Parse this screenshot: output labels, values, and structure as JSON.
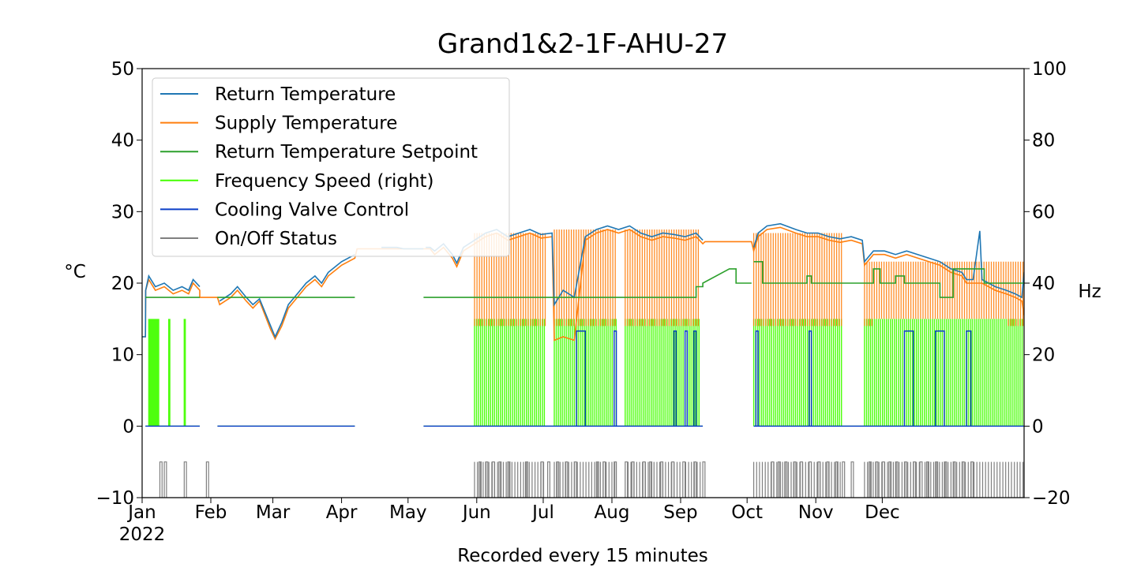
{
  "chart_data": {
    "type": "line",
    "title": "Grand1&2-1F-AHU-27",
    "xlabel": "Recorded every 15 minutes",
    "ylabel_left": "°C",
    "ylabel_right": "Hz",
    "ylim_left": [
      -10,
      50
    ],
    "ylim_right": [
      -20,
      100
    ],
    "yticks_left": [
      "−10",
      "0",
      "10",
      "20",
      "30",
      "40",
      "50"
    ],
    "yticks_right": [
      "−20",
      "0",
      "20",
      "40",
      "60",
      "80",
      "100"
    ],
    "xlim": [
      "2022-01-01",
      "2022-12-31"
    ],
    "xticks": [
      {
        "label": "Jan",
        "sub": "2022",
        "month": 0
      },
      {
        "label": "Feb",
        "month": 1
      },
      {
        "label": "Mar",
        "month": 2
      },
      {
        "label": "Apr",
        "month": 3
      },
      {
        "label": "May",
        "month": 4
      },
      {
        "label": "Jun",
        "month": 5
      },
      {
        "label": "Jul",
        "month": 6
      },
      {
        "label": "Aug",
        "month": 7
      },
      {
        "label": "Sep",
        "month": 8
      },
      {
        "label": "Oct",
        "month": 9
      },
      {
        "label": "Nov",
        "month": 10
      },
      {
        "label": "Dec",
        "month": 11
      }
    ],
    "legend_position": "upper-left",
    "grid": false,
    "series": [
      {
        "name": "Return Temperature",
        "color": "#1f77b4",
        "axis": "left",
        "points": [
          [
            0,
            12.5
          ],
          [
            1.5,
            12.5
          ],
          [
            1.6,
            19
          ],
          [
            3,
            21
          ],
          [
            6,
            19.5
          ],
          [
            10,
            20
          ],
          [
            14,
            19
          ],
          [
            18,
            19.5
          ],
          [
            21,
            19
          ],
          [
            23,
            20.5
          ],
          [
            26,
            19.5
          ],
          [
            34,
            null
          ],
          [
            35,
            17.5
          ],
          [
            40,
            18.5
          ],
          [
            43,
            19.5
          ],
          [
            47,
            18
          ],
          [
            50,
            17
          ],
          [
            53,
            17.8
          ],
          [
            58,
            14
          ],
          [
            60,
            12.5
          ],
          [
            63,
            14.5
          ],
          [
            66,
            17
          ],
          [
            70,
            18.5
          ],
          [
            74,
            20
          ],
          [
            78,
            21
          ],
          [
            81,
            20
          ],
          [
            84,
            21.5
          ],
          [
            88,
            22.5
          ],
          [
            90,
            23
          ],
          [
            93,
            23.5
          ],
          [
            96,
            24
          ],
          [
            107,
            null
          ],
          [
            108,
            25
          ],
          [
            115,
            25
          ],
          [
            118,
            24.8
          ],
          [
            121,
            24.8
          ],
          [
            124,
            24.8
          ],
          [
            127,
            24.8
          ],
          [
            127,
            null
          ],
          [
            128,
            25
          ],
          [
            130,
            25
          ],
          [
            132,
            24.5
          ],
          [
            136,
            25.5
          ],
          [
            140,
            24
          ],
          [
            142,
            22.8
          ],
          [
            145,
            25
          ],
          [
            150,
            26
          ],
          [
            155,
            27
          ],
          [
            160,
            27.5
          ],
          [
            165,
            26.5
          ],
          [
            170,
            27
          ],
          [
            175,
            27.5
          ],
          [
            180,
            26.8
          ],
          [
            185,
            27
          ],
          [
            186,
            17
          ],
          [
            190,
            19
          ],
          [
            195,
            18
          ],
          [
            200,
            26.5
          ],
          [
            205,
            27.5
          ],
          [
            210,
            28
          ],
          [
            215,
            27.5
          ],
          [
            220,
            28
          ],
          [
            225,
            27
          ],
          [
            230,
            26.5
          ],
          [
            235,
            27
          ],
          [
            240,
            26.8
          ],
          [
            245,
            26.5
          ],
          [
            250,
            27
          ],
          [
            253,
            26
          ],
          [
            253,
            null
          ],
          [
            276,
            25
          ],
          [
            278,
            27
          ],
          [
            282,
            28
          ],
          [
            288,
            28.3
          ],
          [
            295,
            27.5
          ],
          [
            300,
            27
          ],
          [
            305,
            27
          ],
          [
            310,
            26.5
          ],
          [
            315,
            26.2
          ],
          [
            320,
            26.5
          ],
          [
            325,
            26
          ],
          [
            326,
            23
          ],
          [
            330,
            24.5
          ],
          [
            335,
            24.5
          ],
          [
            340,
            24
          ],
          [
            345,
            24.5
          ],
          [
            350,
            24
          ],
          [
            355,
            23.5
          ],
          [
            360,
            23
          ],
          [
            365,
            22
          ],
          [
            370,
            21.5
          ],
          [
            372,
            20.5
          ],
          [
            375,
            20.5
          ],
          [
            378,
            27.3
          ],
          [
            379,
            20.5
          ],
          [
            385,
            19.5
          ],
          [
            390,
            19
          ],
          [
            394,
            18.5
          ],
          [
            397,
            18
          ],
          [
            398,
            21.5
          ],
          [
            400,
            22
          ]
        ]
      },
      {
        "name": "Supply Temperature",
        "color": "#ff7f0e",
        "axis": "left",
        "points": [
          [
            0,
            12.5
          ],
          [
            1.5,
            12.5
          ],
          [
            1.6,
            19
          ],
          [
            3,
            20.5
          ],
          [
            6,
            19
          ],
          [
            10,
            19.5
          ],
          [
            14,
            18.5
          ],
          [
            18,
            19
          ],
          [
            21,
            18.5
          ],
          [
            23,
            20
          ],
          [
            26,
            19
          ],
          [
            26,
            18
          ],
          [
            34,
            18
          ],
          [
            35,
            17
          ],
          [
            40,
            18
          ],
          [
            43,
            19
          ],
          [
            47,
            17.5
          ],
          [
            50,
            16.5
          ],
          [
            53,
            17.5
          ],
          [
            58,
            13.5
          ],
          [
            60,
            12.2
          ],
          [
            63,
            14
          ],
          [
            66,
            16.5
          ],
          [
            70,
            18
          ],
          [
            74,
            19.5
          ],
          [
            78,
            20.5
          ],
          [
            81,
            19.5
          ],
          [
            84,
            21
          ],
          [
            88,
            22
          ],
          [
            90,
            22.5
          ],
          [
            93,
            23
          ],
          [
            96,
            23.5
          ],
          [
            97,
            24.8
          ],
          [
            107,
            24.8
          ],
          [
            108,
            24.8
          ],
          [
            127,
            24.8
          ],
          [
            130,
            24.8
          ],
          [
            132,
            24
          ],
          [
            136,
            25
          ],
          [
            140,
            23.5
          ],
          [
            142,
            22.3
          ],
          [
            145,
            24.5
          ],
          [
            150,
            25.5
          ],
          [
            155,
            26.5
          ],
          [
            160,
            27
          ],
          [
            165,
            26
          ],
          [
            170,
            26.5
          ],
          [
            175,
            27
          ],
          [
            180,
            26.3
          ],
          [
            185,
            26.5
          ],
          [
            186,
            12
          ],
          [
            190,
            12.5
          ],
          [
            195,
            12
          ],
          [
            200,
            26
          ],
          [
            205,
            27
          ],
          [
            210,
            27.5
          ],
          [
            215,
            27
          ],
          [
            220,
            27.5
          ],
          [
            225,
            26.5
          ],
          [
            230,
            26
          ],
          [
            235,
            26.5
          ],
          [
            240,
            26.3
          ],
          [
            245,
            26
          ],
          [
            250,
            26.5
          ],
          [
            253,
            25.5
          ],
          [
            254,
            25.8
          ],
          [
            275,
            25.8
          ],
          [
            276,
            24.5
          ],
          [
            278,
            26.5
          ],
          [
            282,
            27.5
          ],
          [
            288,
            27.8
          ],
          [
            295,
            27
          ],
          [
            300,
            26.5
          ],
          [
            305,
            26.5
          ],
          [
            310,
            26
          ],
          [
            315,
            25.7
          ],
          [
            320,
            26
          ],
          [
            325,
            25.5
          ],
          [
            326,
            22.5
          ],
          [
            330,
            24
          ],
          [
            335,
            24
          ],
          [
            340,
            23.5
          ],
          [
            345,
            24
          ],
          [
            350,
            23.5
          ],
          [
            355,
            23
          ],
          [
            360,
            22.5
          ],
          [
            365,
            21.5
          ],
          [
            370,
            21
          ],
          [
            372,
            20
          ],
          [
            375,
            20
          ],
          [
            379,
            20
          ],
          [
            385,
            19
          ],
          [
            390,
            18.5
          ],
          [
            394,
            18
          ],
          [
            397,
            17.5
          ],
          [
            398,
            15.5
          ]
        ]
      },
      {
        "name": "Return Temperature Setpoint",
        "color": "#2ca02c",
        "axis": "left",
        "points": [
          [
            1.5,
            18
          ],
          [
            26,
            18
          ],
          [
            26,
            null
          ],
          [
            34,
            18
          ],
          [
            96,
            18
          ],
          [
            96,
            null
          ],
          [
            127,
            18
          ],
          [
            250,
            18
          ],
          [
            250,
            19.5
          ],
          [
            253,
            19.5
          ],
          [
            253,
            20
          ],
          [
            265,
            22
          ],
          [
            268,
            22
          ],
          [
            268,
            20
          ],
          [
            275,
            20
          ],
          [
            275,
            null
          ],
          [
            276,
            23
          ],
          [
            280,
            23
          ],
          [
            280,
            20
          ],
          [
            300,
            20
          ],
          [
            300,
            21
          ],
          [
            302,
            21
          ],
          [
            302,
            20
          ],
          [
            330,
            20
          ],
          [
            330,
            22
          ],
          [
            333,
            22
          ],
          [
            333,
            20
          ],
          [
            340,
            20
          ],
          [
            340,
            21
          ],
          [
            344,
            21
          ],
          [
            344,
            20
          ],
          [
            360,
            20
          ],
          [
            360,
            18
          ],
          [
            366,
            18
          ],
          [
            366,
            22
          ],
          [
            380,
            22
          ],
          [
            380,
            20
          ],
          [
            398,
            20
          ]
        ]
      },
      {
        "name": "Frequency Speed (right)",
        "color": "#44ff00",
        "axis": "right",
        "points": []
      },
      {
        "name": "Cooling Valve Control",
        "color": "#0a3ec8",
        "axis": "left",
        "points": []
      },
      {
        "name": "On/Off Status",
        "color": "#808080",
        "axis": "left",
        "points": []
      }
    ],
    "on_periods": {
      "note": "",
      "freq_on_value_hz": 30,
      "status_on_value": -5,
      "status_off_value": -10,
      "valve_on_value": 13.3,
      "intervals": [
        [
          8,
          9
        ],
        [
          10,
          11
        ],
        [
          19,
          20
        ],
        [
          29,
          30
        ],
        [
          152,
          153
        ],
        [
          155,
          156
        ],
        [
          158,
          159
        ],
        [
          161,
          162
        ],
        [
          165,
          166
        ],
        [
          173,
          174
        ],
        [
          180,
          181
        ],
        [
          183,
          184
        ],
        [
          187,
          188
        ],
        [
          191,
          192
        ],
        [
          195,
          196
        ],
        [
          205,
          206
        ],
        [
          208,
          209
        ],
        [
          213,
          214
        ],
        [
          218,
          219
        ],
        [
          221,
          222
        ],
        [
          226,
          227
        ],
        [
          229,
          230
        ],
        [
          234,
          235
        ],
        [
          239,
          240
        ],
        [
          244,
          245
        ],
        [
          249,
          250
        ],
        [
          253,
          254
        ],
        [
          284,
          285
        ],
        [
          287,
          288
        ],
        [
          290,
          291
        ],
        [
          294,
          295
        ],
        [
          297,
          298
        ],
        [
          301,
          302
        ],
        [
          305,
          306
        ],
        [
          309,
          310
        ],
        [
          313,
          314
        ],
        [
          316,
          317
        ],
        [
          320,
          321
        ],
        [
          328,
          329
        ],
        [
          331,
          332
        ],
        [
          334,
          335
        ],
        [
          337,
          338
        ],
        [
          340,
          341
        ],
        [
          344,
          345
        ],
        [
          348,
          349
        ],
        [
          351,
          352
        ],
        [
          354,
          355
        ],
        [
          358,
          359
        ],
        [
          362,
          363
        ],
        [
          366,
          367
        ],
        [
          370,
          371
        ],
        [
          374,
          375
        ]
      ],
      "freq_ranges": [
        [
          3,
          8
        ],
        [
          12,
          13
        ],
        [
          19,
          20
        ],
        [
          150,
          182
        ],
        [
          186,
          214
        ],
        [
          218,
          252
        ],
        [
          276,
          316
        ],
        [
          326,
          398
        ]
      ]
    }
  }
}
